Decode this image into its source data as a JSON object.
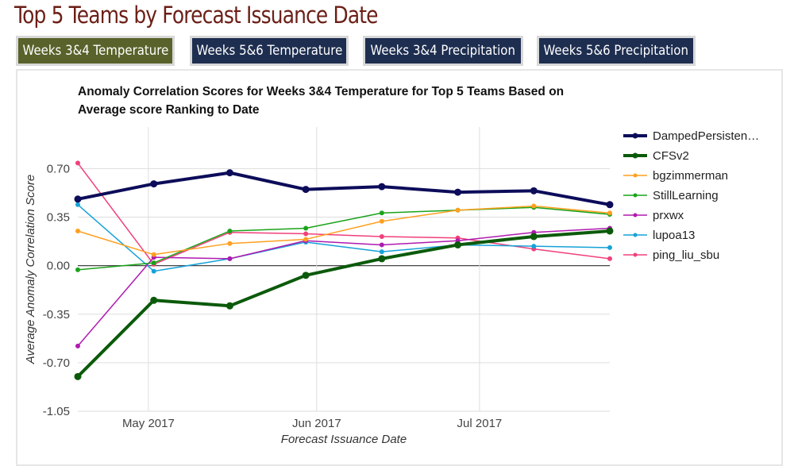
{
  "page_title": "Top 5 Teams by Forecast Issuance Date",
  "tabs": [
    {
      "label": "Weeks 3&4 Temperature",
      "active": true
    },
    {
      "label": "Weeks 5&6 Temperature",
      "active": false
    },
    {
      "label": "Weeks 3&4 Precipitation",
      "active": false
    },
    {
      "label": "Weeks 5&6 Precipitation",
      "active": false
    }
  ],
  "colors": {
    "title": "#6b1f17",
    "tab_active": "#59622a",
    "tab_inactive": "#1e2e50"
  },
  "chart_data": {
    "type": "line",
    "title_lines": [
      "Anomaly Correlation Scores for Weeks 3&4 Temperature for Top 5 Teams Based on",
      "Average score Ranking to Date"
    ],
    "xlabel": "Forecast Issuance Date",
    "ylabel": "Average Anomaly Correlation Score",
    "x": [
      "2017-04-18",
      "2017-05-02",
      "2017-05-16",
      "2017-05-30",
      "2017-06-13",
      "2017-06-27",
      "2017-07-11",
      "2017-07-25"
    ],
    "x_ticks": [
      {
        "date": "2017-05-01",
        "label": "May 2017"
      },
      {
        "date": "2017-06-01",
        "label": "Jun 2017"
      },
      {
        "date": "2017-07-01",
        "label": "Jul 2017"
      }
    ],
    "y_ticks": [
      "0.70",
      "0.35",
      "0.00",
      "-0.35",
      "-0.70",
      "-1.05"
    ],
    "ylim": [
      -1.05,
      1.0
    ],
    "grid": true,
    "legend_position": "right",
    "series": [
      {
        "name": "DampedPersisten…",
        "color": "#0c0c5a",
        "width": 4,
        "values": [
          0.48,
          0.59,
          0.67,
          0.55,
          0.57,
          0.53,
          0.54,
          0.44
        ]
      },
      {
        "name": "CFSv2",
        "color": "#0b5a0b",
        "width": 4,
        "values": [
          -0.8,
          -0.25,
          -0.29,
          -0.07,
          0.05,
          0.15,
          0.21,
          0.25
        ]
      },
      {
        "name": "bgzimmerman",
        "color": "#ffa020",
        "width": 1.5,
        "values": [
          0.25,
          0.08,
          0.16,
          0.19,
          0.32,
          0.4,
          0.43,
          0.38
        ]
      },
      {
        "name": "StillLearning",
        "color": "#1aa31a",
        "width": 1.5,
        "values": [
          -0.03,
          0.02,
          0.25,
          0.27,
          0.38,
          0.4,
          0.42,
          0.37
        ]
      },
      {
        "name": "prxwx",
        "color": "#b01ab0",
        "width": 1.5,
        "values": [
          -0.58,
          0.06,
          0.05,
          0.18,
          0.15,
          0.18,
          0.24,
          0.27
        ]
      },
      {
        "name": "lupoa13",
        "color": "#16a2d8",
        "width": 1.5,
        "values": [
          0.44,
          -0.04,
          0.05,
          0.17,
          0.1,
          0.15,
          0.14,
          0.13
        ]
      },
      {
        "name": "ping_liu_sbu",
        "color": "#f0407a",
        "width": 1.5,
        "values": [
          0.74,
          0.01,
          0.24,
          0.23,
          0.21,
          0.2,
          0.12,
          0.05
        ]
      }
    ]
  }
}
